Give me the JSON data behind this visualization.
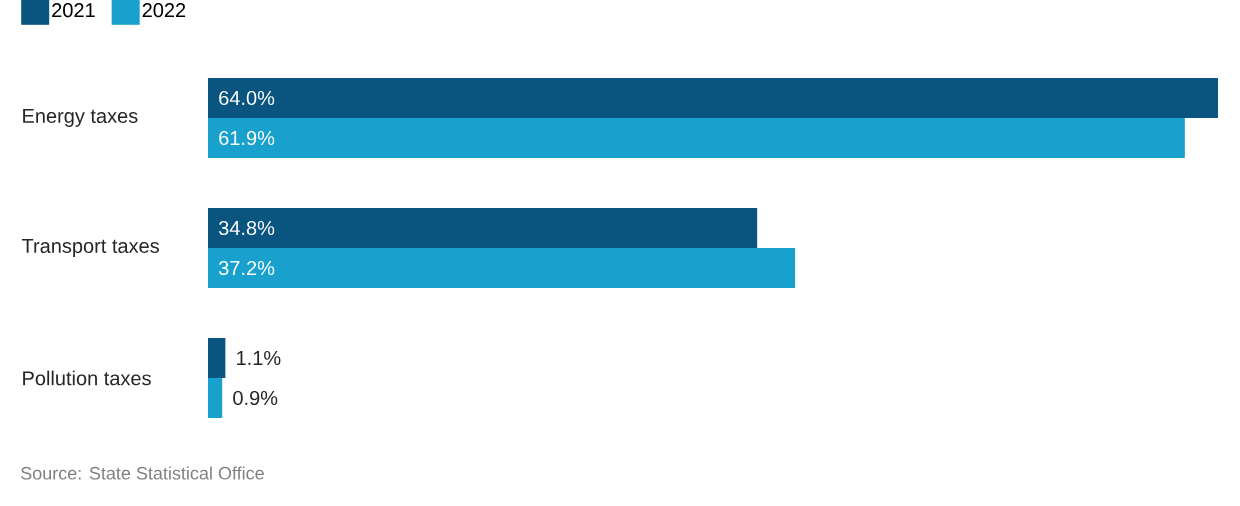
{
  "chart_data": {
    "type": "bar",
    "orientation": "horizontal",
    "categories": [
      "Energy taxes",
      "Transport taxes",
      "Pollution taxes"
    ],
    "series": [
      {
        "name": "2021",
        "color": "#0a5580",
        "values": [
          64.0,
          34.8,
          1.1
        ],
        "value_labels": [
          "64.0%",
          "34.8%",
          "1.1%"
        ]
      },
      {
        "name": "2022",
        "color": "#18a1cd",
        "values": [
          61.9,
          37.2,
          0.9
        ],
        "value_labels": [
          "61.9%",
          "37.2%",
          "0.9%"
        ]
      }
    ],
    "legend": "top left",
    "tick_labels": "y",
    "annotations": [
      "Source: State Statistical Office"
    ]
  }
}
